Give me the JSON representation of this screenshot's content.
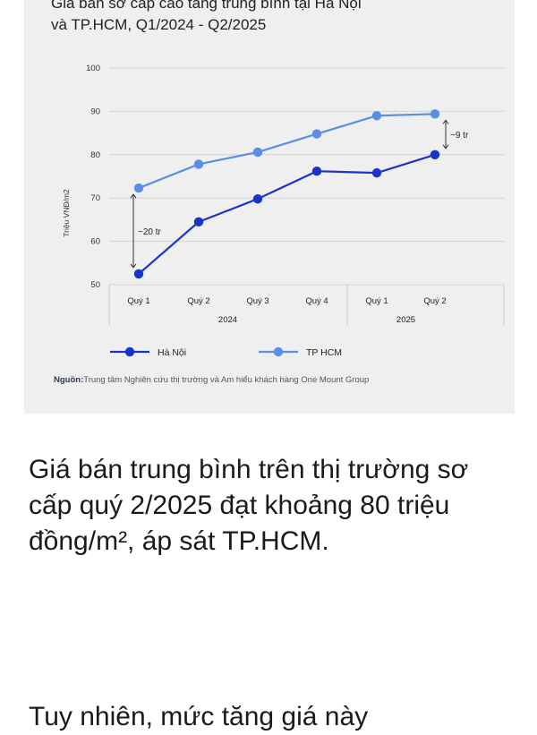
{
  "chart_data": {
    "type": "line",
    "title_line1": "Giá bán sơ cấp cao tầng trung bình tại Hà Nội",
    "title_line2": "và TP.HCM, Q1/2024 - Q2/2025",
    "ylabel": "Triệu VNĐ/m2",
    "ylim": [
      50,
      100
    ],
    "yticks": [
      "50",
      "60",
      "70",
      "80",
      "90",
      "100"
    ],
    "categories": [
      "Quý 1",
      "Quý 2",
      "Quý 3",
      "Quý 4",
      "Quý 1",
      "Quý 2"
    ],
    "year_groups": [
      {
        "label": "2024",
        "from": 0,
        "to": 3
      },
      {
        "label": "2025",
        "from": 4,
        "to": 5
      }
    ],
    "series": [
      {
        "name": "Hà Nội",
        "color": "#1b34c8",
        "values": [
          52.5,
          64.5,
          69.8,
          76.2,
          75.8,
          80.0
        ]
      },
      {
        "name": "TP HCM",
        "color": "#5b8fe6",
        "values": [
          72.3,
          77.8,
          80.6,
          84.8,
          89.0,
          89.4
        ]
      }
    ],
    "annotations": [
      {
        "label": "~20 tr",
        "category_index": 0,
        "from": 52.5,
        "to": 72.3
      },
      {
        "label": "~9 tr",
        "category_index": 5,
        "from": 80.0,
        "to": 89.4
      }
    ],
    "grid": true,
    "legend_position": "bottom-left"
  },
  "source": {
    "prefix": "Nguồn:",
    "text": "Trung tâm Nghiên cứu thị trường và Am hiểu khách hàng One Mount Group"
  },
  "article": {
    "paragraph": "Giá bán trung bình trên thị trường sơ cấp quý 2/2025 đạt khoảng 80 triệu đồng/m², áp sát TP.HCM.",
    "next_line": "Tuy nhiên, mức tăng giá này"
  }
}
